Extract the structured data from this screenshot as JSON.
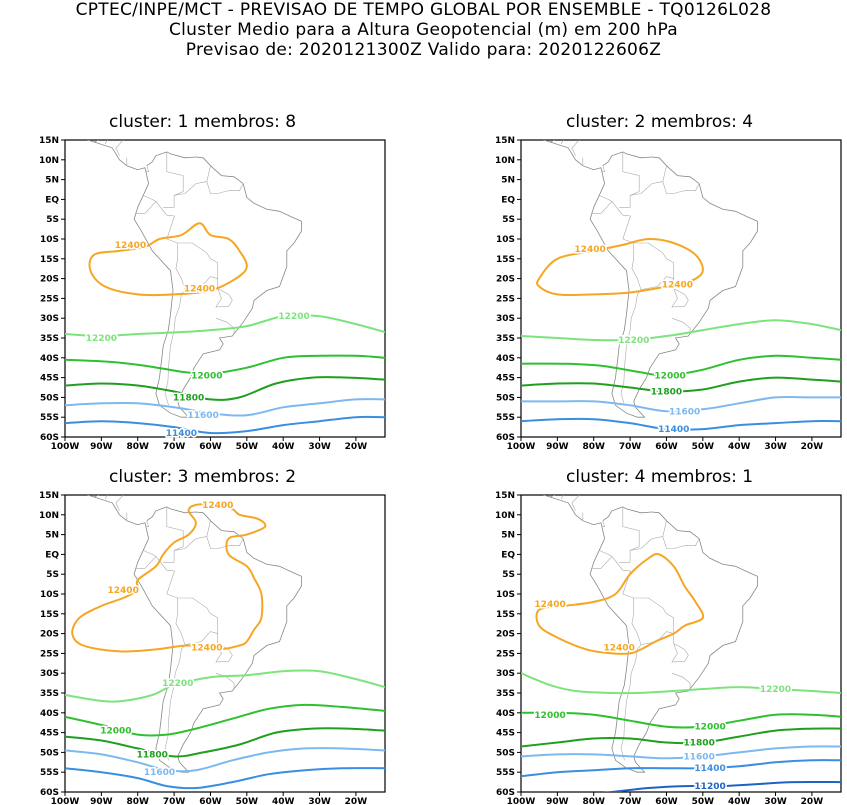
{
  "header": {
    "line1": "CPTEC/INPE/MCT - PREVISAO DE TEMPO GLOBAL POR ENSEMBLE - TQ0126L028",
    "line2": "Cluster Medio para a Altura Geopotencial (m) em 200 hPa",
    "line3": "Previsao de: 2020121300Z    Valido para: 2020122606Z"
  },
  "panels": [
    {
      "title": "cluster: 1  membros: 8"
    },
    {
      "title": "cluster: 2  membros: 4"
    },
    {
      "title": "cluster: 3  membros: 2"
    },
    {
      "title": "cluster: 4  membros: 1"
    }
  ],
  "axes": {
    "lat_ticks": [
      "15N",
      "10N",
      "5N",
      "EQ",
      "5S",
      "10S",
      "15S",
      "20S",
      "25S",
      "30S",
      "35S",
      "40S",
      "45S",
      "50S",
      "55S",
      "60S"
    ],
    "lon_ticks": [
      "100W",
      "90W",
      "80W",
      "70W",
      "60W",
      "50W",
      "40W",
      "30W",
      "20W"
    ]
  },
  "contour_colors": {
    "12400": "#f5a623",
    "12200": "#7de37d",
    "12000": "#2ec02e",
    "11800": "#1f9e1f",
    "11600": "#7db8f0",
    "11400": "#3a8ee0",
    "11200": "#1f62c2"
  },
  "contour_labels": {
    "c12400": "12400",
    "c12200": "12200",
    "c12000": "12000",
    "c11800": "11800",
    "c11600": "11600",
    "c11400": "11400",
    "c11200": "11200"
  }
}
